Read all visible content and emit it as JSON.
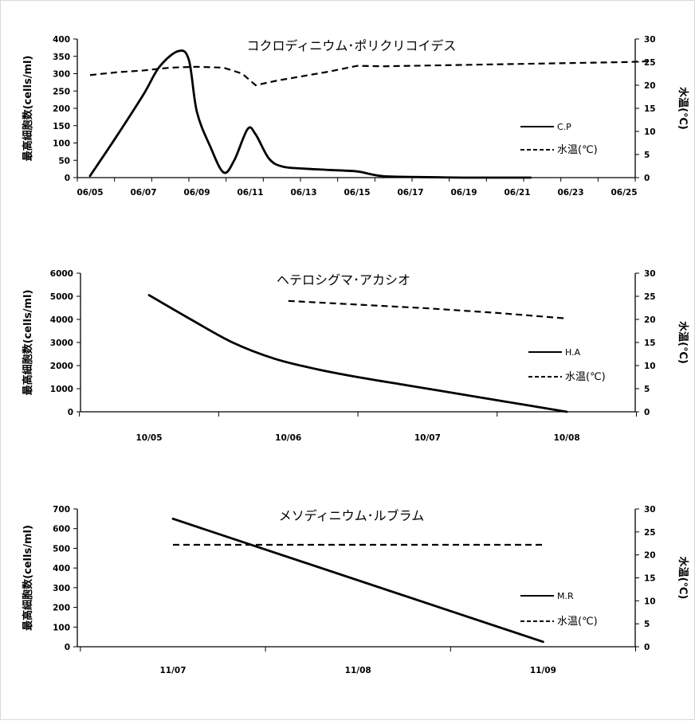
{
  "chart_data": [
    {
      "type": "line",
      "title": "コクロディニウム･ポリクリコイデス",
      "ylabel": "最高細胞数(cells/ml)",
      "y2label": "水温(℃)",
      "ylim": [
        0,
        400
      ],
      "y2lim": [
        0,
        30
      ],
      "x_ticks": [
        "06/05",
        "06/07",
        "06/09",
        "06/11",
        "06/13",
        "06/15",
        "06/17",
        "06/19",
        "06/21",
        "06/23",
        "06/25"
      ],
      "series": [
        {
          "name": "C.P",
          "axis": "left",
          "style": "solid",
          "x": [
            5.0,
            6.0,
            7.0,
            7.6,
            8.3,
            8.7,
            9.0,
            9.5,
            10.0,
            10.4,
            10.9,
            11.2,
            11.7,
            12.2,
            13.0,
            14.0,
            15.0,
            15.5,
            16.0,
            17.0,
            18.0,
            19.0,
            20.0,
            21.0,
            21.5
          ],
          "y": [
            5,
            120,
            240,
            320,
            365,
            340,
            190,
            90,
            15,
            50,
            140,
            125,
            55,
            32,
            26,
            22,
            18,
            10,
            4,
            2,
            1,
            0,
            0,
            0,
            0
          ]
        },
        {
          "name": "水温(℃)",
          "axis": "right",
          "style": "dashed",
          "x": [
            5,
            6,
            7,
            8,
            9,
            10,
            10.7,
            11.2,
            12,
            13,
            14,
            15,
            16,
            17,
            18,
            19,
            20,
            21,
            22,
            23,
            24,
            25,
            26
          ],
          "y": [
            22.2,
            22.8,
            23.2,
            23.8,
            24,
            23.8,
            22.5,
            20,
            21,
            22,
            23,
            24.2,
            24.1,
            24.2,
            24.3,
            24.4,
            24.5,
            24.6,
            24.7,
            24.8,
            24.9,
            25,
            25.2
          ]
        }
      ]
    },
    {
      "type": "line",
      "title": "ヘテロシグマ･アカシオ",
      "ylabel": "最高細胞数(cells/ml)",
      "y2label": "水温(℃)",
      "ylim": [
        0,
        6000
      ],
      "y2lim": [
        0,
        30
      ],
      "x_ticks": [
        "10/05",
        "10/06",
        "10/07",
        "10/08"
      ],
      "series": [
        {
          "name": "H.A",
          "axis": "left",
          "style": "solid",
          "x": [
            0.0,
            0.3,
            0.6,
            0.9,
            1.2,
            1.5,
            1.8,
            2.1,
            2.4,
            2.7,
            3.0
          ],
          "y": [
            5050,
            4000,
            3000,
            2300,
            1850,
            1500,
            1200,
            900,
            600,
            300,
            0
          ]
        },
        {
          "name": "水温(℃)",
          "axis": "right",
          "style": "dashed",
          "x": [
            1.0,
            1.5,
            2.0,
            2.5,
            3.0
          ],
          "y": [
            24,
            23.2,
            22.4,
            21.4,
            20.2
          ]
        }
      ]
    },
    {
      "type": "line",
      "title": "メソディニウム･ルブラム",
      "ylabel": "最高細胞数(cells/ml)",
      "y2label": "水温(℃)",
      "ylim": [
        0,
        700
      ],
      "y2lim": [
        0,
        30
      ],
      "x_ticks": [
        "11/07",
        "11/08",
        "11/09"
      ],
      "series": [
        {
          "name": "M.R",
          "axis": "left",
          "style": "solid",
          "x": [
            0.0,
            2.0
          ],
          "y": [
            650,
            25
          ]
        },
        {
          "name": "水温(℃)",
          "axis": "right",
          "style": "dashed",
          "x": [
            0.0,
            2.0
          ],
          "y": [
            22.2,
            22.2
          ]
        }
      ]
    }
  ]
}
